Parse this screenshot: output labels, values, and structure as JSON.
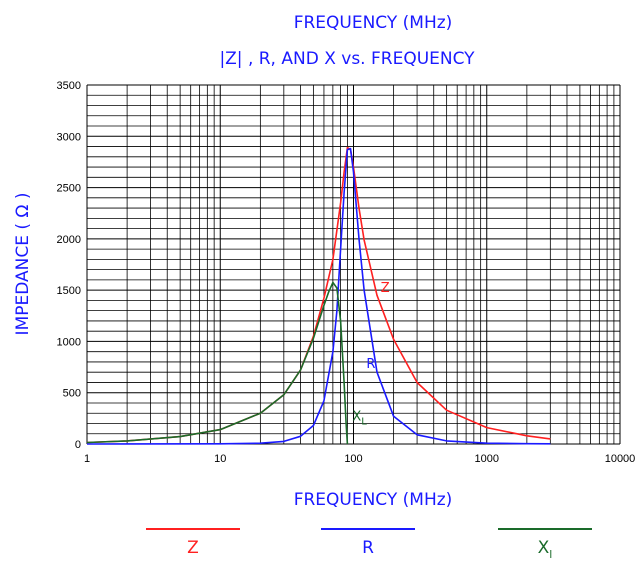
{
  "header": {
    "top_title": "FREQUENCY (MHz)",
    "subtitle": "|Z| , R, AND X vs. FREQUENCY"
  },
  "colors": {
    "Z": "#ff2020",
    "R": "#1a1aff",
    "X": "#1a6b2a",
    "title": "#1a1aff"
  },
  "chart_data": {
    "type": "line",
    "xlabel": "FREQUENCY (MHz)",
    "ylabel": "IMPEDANCE ( Ω )",
    "xscale": "log",
    "xlim": [
      1,
      10000
    ],
    "ylim": [
      0,
      3500
    ],
    "grid": true,
    "legend_position": "bottom",
    "x_ticks": [
      "1",
      "10",
      "100",
      "1000",
      "10000"
    ],
    "y_ticks": [
      "0",
      "500",
      "1000",
      "1500",
      "2000",
      "2500",
      "3000",
      "3500"
    ],
    "series": [
      {
        "name": "Z",
        "color": "#ff2020",
        "x": [
          1,
          2,
          5,
          10,
          20,
          30,
          40,
          50,
          60,
          70,
          80,
          85,
          90,
          95,
          100,
          110,
          120,
          150,
          200,
          300,
          500,
          1000,
          2000,
          3000
        ],
        "y": [
          15,
          30,
          72,
          140,
          300,
          480,
          720,
          1050,
          1420,
          1800,
          2350,
          2650,
          2890,
          2870,
          2700,
          2300,
          1990,
          1450,
          1020,
          600,
          330,
          160,
          80,
          50
        ]
      },
      {
        "name": "R",
        "color": "#1a1aff",
        "x": [
          1,
          10,
          20,
          30,
          40,
          50,
          60,
          70,
          75,
          80,
          85,
          90,
          95,
          100,
          110,
          120,
          150,
          200,
          300,
          500,
          1000,
          2000,
          3000
        ],
        "y": [
          0,
          2,
          8,
          25,
          75,
          180,
          420,
          900,
          1300,
          1900,
          2450,
          2870,
          2880,
          2650,
          2000,
          1500,
          700,
          270,
          90,
          30,
          8,
          3,
          2
        ]
      },
      {
        "name": "X",
        "label_text": "XL",
        "color": "#1a6b2a",
        "x": [
          1,
          2,
          5,
          10,
          20,
          30,
          40,
          50,
          60,
          65,
          70,
          75,
          80,
          85,
          88,
          90
        ],
        "y": [
          15,
          30,
          72,
          140,
          300,
          480,
          720,
          1030,
          1350,
          1480,
          1575,
          1520,
          1200,
          600,
          200,
          0
        ]
      }
    ],
    "curve_labels": [
      {
        "text": "Z",
        "series": "Z",
        "x": 160,
        "y": 1480
      },
      {
        "text": "R",
        "series": "R",
        "x": 125,
        "y": 740
      },
      {
        "text": "X",
        "sub": "L",
        "series": "X",
        "x": 98,
        "y": 230
      }
    ],
    "legend": [
      {
        "main": "Z",
        "sub": "",
        "series": "Z"
      },
      {
        "main": "R",
        "sub": "",
        "series": "R"
      },
      {
        "main": "X",
        "sub": "l",
        "series": "X"
      }
    ]
  }
}
